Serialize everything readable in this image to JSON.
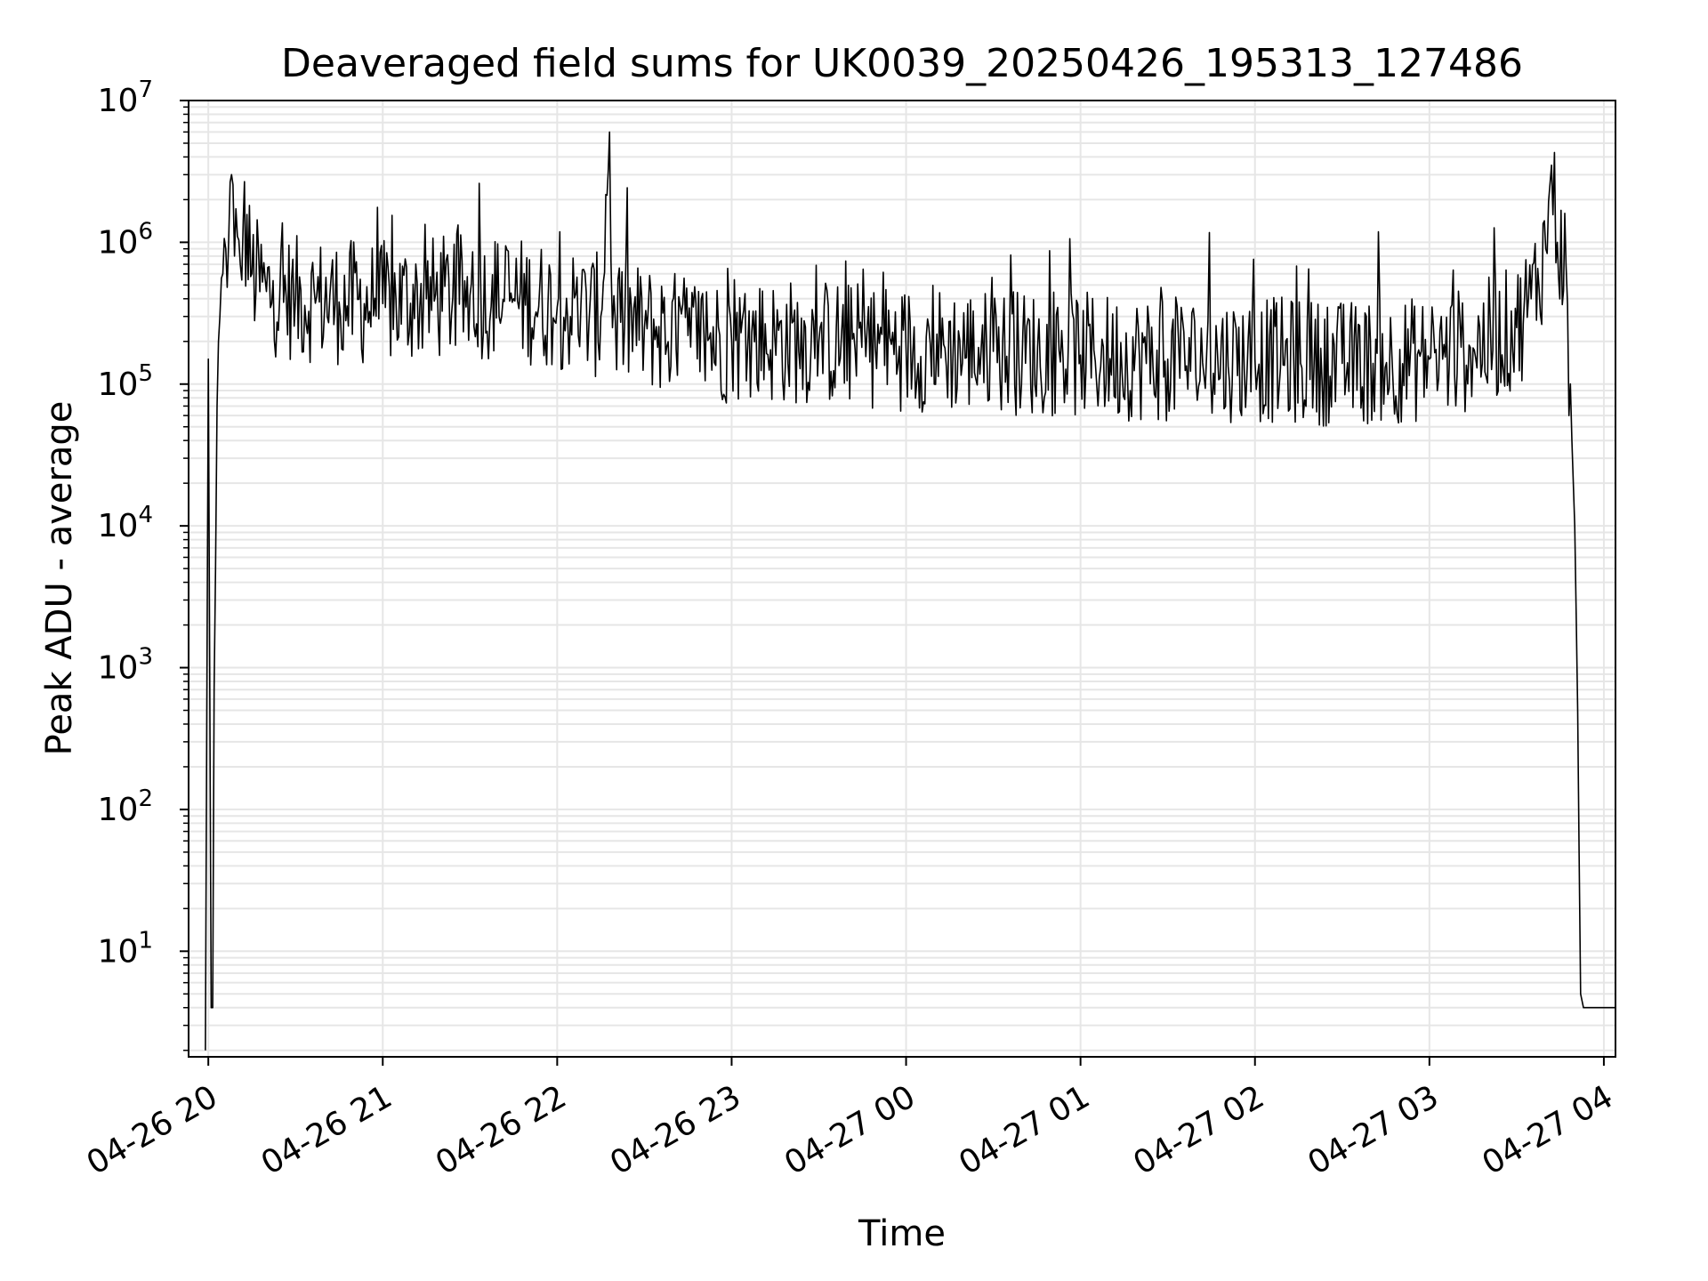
{
  "chart_data": {
    "type": "line",
    "title": "Deaveraged field sums for UK0039_20250426_195313_127486",
    "xlabel": "Time",
    "ylabel": "Peak ADU - average",
    "yscale": "log",
    "xlim": [
      "2025-04-26T19:53:13",
      "2025-04-27T04:04:00"
    ],
    "ylim": [
      1.8,
      10000000
    ],
    "grid": true,
    "x_ticks": [
      "04-26 20",
      "04-26 21",
      "04-26 22",
      "04-26 23",
      "04-27 00",
      "04-27 01",
      "04-27 02",
      "04-27 03",
      "04-27 04"
    ],
    "y_ticks": [
      {
        "base": "10",
        "exp": "1",
        "value": 10
      },
      {
        "base": "10",
        "exp": "2",
        "value": 100
      },
      {
        "base": "10",
        "exp": "3",
        "value": 1000
      },
      {
        "base": "10",
        "exp": "4",
        "value": 10000
      },
      {
        "base": "10",
        "exp": "5",
        "value": 100000
      },
      {
        "base": "10",
        "exp": "6",
        "value": 1000000
      },
      {
        "base": "10",
        "exp": "7",
        "value": 10000000
      }
    ],
    "line_color": "#000000",
    "series": [
      {
        "x": [
          "2025-04-26T19:59:00",
          "2025-04-26T20:00:00",
          "2025-04-26T20:01:00",
          "2025-04-26T20:01:30",
          "2025-04-26T20:02:00",
          "2025-04-26T20:02:30",
          "2025-04-26T20:03:00",
          "2025-04-26T20:04:00",
          "2025-04-26T20:05:00",
          "2025-04-26T20:06:00",
          "2025-04-26T20:07:00",
          "2025-04-26T20:08:00",
          "2025-04-26T20:09:00",
          "2025-04-26T20:10:00",
          "2025-04-26T20:11:00",
          "2025-04-26T20:12:00",
          "2025-04-26T20:15:00",
          "2025-04-26T20:20:00",
          "2025-04-26T20:30:00",
          "2025-04-26T20:45:00",
          "2025-04-26T21:00:00",
          "2025-04-26T21:15:00",
          "2025-04-26T21:30:00",
          "2025-04-26T21:45:00",
          "2025-04-26T22:00:00",
          "2025-04-26T22:15:00",
          "2025-04-26T22:18:00",
          "2025-04-26T22:19:00",
          "2025-04-26T22:20:00",
          "2025-04-26T22:30:00",
          "2025-04-26T22:45:00",
          "2025-04-26T23:00:00",
          "2025-04-26T23:30:00",
          "2025-04-27T00:00:00",
          "2025-04-27T00:30:00",
          "2025-04-27T01:00:00",
          "2025-04-27T01:30:00",
          "2025-04-27T02:00:00",
          "2025-04-27T02:30:00",
          "2025-04-27T03:00:00",
          "2025-04-27T03:15:00",
          "2025-04-27T03:30:00",
          "2025-04-27T03:35:00",
          "2025-04-27T03:40:00",
          "2025-04-27T03:42:00",
          "2025-04-27T03:44:00",
          "2025-04-27T03:47:00",
          "2025-04-27T03:48:00",
          "2025-04-27T03:49:00",
          "2025-04-27T03:50:00",
          "2025-04-27T03:51:00",
          "2025-04-27T03:52:00",
          "2025-04-27T03:53:00",
          "2025-04-27T04:04:00"
        ],
        "y": [
          2,
          150000,
          4,
          4,
          700,
          5000,
          70000,
          300000,
          600000,
          900000,
          1000000,
          3000000,
          800000,
          1100000,
          700000,
          1400000,
          600000,
          450000,
          400000,
          380000,
          370000,
          400000,
          420000,
          400000,
          350000,
          300000,
          6000000,
          250000,
          280000,
          250000,
          220000,
          200000,
          200000,
          180000,
          170000,
          160000,
          150000,
          150000,
          140000,
          150000,
          180000,
          250000,
          400000,
          900000,
          3500000,
          1000000,
          700000,
          60000,
          40000,
          10000,
          500,
          5,
          4,
          4
        ]
      }
    ]
  }
}
